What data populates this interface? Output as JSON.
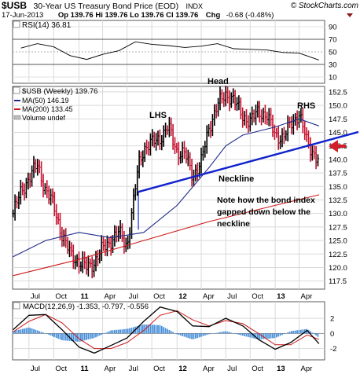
{
  "header": {
    "symbol": "$USB",
    "title": "30-Year US Treasury Bond Price (EOD)",
    "exchange": "INDX",
    "watermark": "© StockCharts.com",
    "date": "17-Jun-2013",
    "quote": "Op 139.76  Hi 139.76  Lo 139.76  Cl 139.76",
    "chg_label": "Chg",
    "chg_value": "-0.68 (-0.48%)",
    "chg_color": "#c00000"
  },
  "chart_data": [
    {
      "type": "line",
      "panel": "RSI",
      "title": "RSI(14) 36.81",
      "ylim": [
        0,
        100
      ],
      "y_ticks": [
        10,
        30,
        50,
        70,
        90
      ],
      "overbought": 70,
      "oversold": 30,
      "x_dates": [
        "2010-06-01",
        "2010-08-01",
        "2010-10-01",
        "2010-12-01",
        "2011-02-01",
        "2011-04-01",
        "2011-06-01",
        "2011-08-01",
        "2011-10-01",
        "2011-12-01",
        "2012-02-01",
        "2012-04-01",
        "2012-06-01",
        "2012-08-01",
        "2012-10-01",
        "2012-12-01",
        "2013-02-01",
        "2013-04-01",
        "2013-06-14"
      ],
      "values": [
        56,
        63,
        58,
        44,
        38,
        46,
        52,
        66,
        62,
        60,
        57,
        59,
        63,
        55,
        54,
        53,
        49,
        48,
        37
      ]
    },
    {
      "type": "bar",
      "panel": "price",
      "title": "$USB (Weekly) 139.76",
      "legend": [
        {
          "name": "MA(50) 146.19",
          "color": "#1f2a8a"
        },
        {
          "name": "MA(200) 133.45",
          "color": "#cc1a1a"
        },
        {
          "name": "Volume undef",
          "color": "#888888"
        }
      ],
      "ylim": [
        116,
        153.5
      ],
      "y_ticks": [
        117.5,
        120.0,
        122.5,
        125.0,
        127.5,
        130.0,
        132.5,
        135.0,
        137.5,
        140.0,
        142.5,
        145.0,
        147.5,
        150.0,
        152.5
      ],
      "series": [
        {
          "name": "$USB",
          "x": [
            "2010-05-03",
            "2010-06-01",
            "2010-07-01",
            "2010-08-02",
            "2010-08-30",
            "2010-10-01",
            "2010-11-01",
            "2010-12-01",
            "2011-01-03",
            "2011-02-01",
            "2011-03-01",
            "2011-04-01",
            "2011-05-02",
            "2011-06-01",
            "2011-07-01",
            "2011-07-29",
            "2011-08-12",
            "2011-09-01",
            "2011-09-30",
            "2011-11-01",
            "2011-12-01",
            "2012-01-03",
            "2012-02-01",
            "2012-03-01",
            "2012-04-02",
            "2012-05-01",
            "2012-06-01",
            "2012-07-02",
            "2012-07-25",
            "2012-09-04",
            "2012-10-01",
            "2012-11-01",
            "2012-12-03",
            "2013-01-02",
            "2013-02-01",
            "2013-03-01",
            "2013-04-01",
            "2013-05-01",
            "2013-06-14"
          ],
          "values": [
            130.0,
            134.0,
            136.5,
            139.0,
            134.5,
            131.5,
            126.0,
            122.5,
            121.0,
            120.0,
            121.0,
            123.5,
            125.0,
            126.5,
            124.0,
            133.5,
            139.0,
            142.0,
            143.0,
            144.0,
            146.0,
            141.5,
            141.0,
            137.0,
            139.5,
            146.0,
            150.0,
            152.0,
            151.5,
            148.0,
            147.0,
            149.0,
            148.0,
            144.5,
            144.0,
            146.5,
            148.5,
            143.0,
            139.76
          ]
        },
        {
          "name": "MA(50)",
          "x": [
            "2010-05-03",
            "2010-09-01",
            "2011-01-03",
            "2011-05-02",
            "2011-09-01",
            "2012-01-03",
            "2012-05-01",
            "2012-07-02",
            "2012-09-04",
            "2013-01-02",
            "2013-04-01",
            "2013-06-14"
          ],
          "values": [
            122.0,
            125.0,
            126.5,
            125.5,
            126.5,
            131.5,
            138.5,
            142.5,
            144.5,
            146.0,
            147.5,
            146.19
          ]
        },
        {
          "name": "MA(200)",
          "x": [
            "2010-05-03",
            "2011-01-03",
            "2011-09-01",
            "2012-05-01",
            "2013-01-02",
            "2013-06-14"
          ],
          "values": [
            118.5,
            121.5,
            125.0,
            128.5,
            131.5,
            133.45
          ]
        }
      ],
      "neckline": {
        "x": [
          "2011-08-12",
          "2013-06-28"
        ],
        "y": [
          134.0,
          144.5
        ]
      },
      "annotations": {
        "lhs": "LHS",
        "head": "Head",
        "rhs": "RHS",
        "neckline": "Neckline",
        "note_lines": [
          "Note how the bond index",
          "gapped down below the",
          "neckline"
        ]
      }
    },
    {
      "type": "line",
      "panel": "MACD",
      "title": "MACD(12,26,9) -1.353, -0.797, -0.556",
      "ylim": [
        -3.5,
        4.2
      ],
      "y_ticks": [
        -2,
        0,
        2
      ],
      "x_dates": [
        "2010-05-03",
        "2010-07-01",
        "2010-09-01",
        "2010-11-01",
        "2011-01-03",
        "2011-03-01",
        "2011-05-02",
        "2011-07-01",
        "2011-09-01",
        "2011-11-01",
        "2012-01-03",
        "2012-03-01",
        "2012-05-01",
        "2012-07-02",
        "2012-09-04",
        "2012-11-01",
        "2013-01-02",
        "2013-03-01",
        "2013-05-01",
        "2013-06-14"
      ],
      "series": [
        {
          "name": "MACD",
          "values": [
            0.5,
            2.4,
            2.5,
            0.5,
            -1.8,
            -2.6,
            -1.6,
            -0.6,
            1.6,
            3.5,
            2.9,
            1.0,
            0.9,
            2.0,
            1.0,
            -0.8,
            -2.1,
            -1.2,
            0.4,
            -1.353
          ]
        },
        {
          "name": "Signal",
          "values": [
            0.2,
            1.6,
            2.5,
            1.4,
            -0.7,
            -2.0,
            -2.0,
            -1.2,
            0.4,
            2.4,
            3.0,
            1.8,
            1.0,
            1.7,
            1.3,
            0.0,
            -1.5,
            -1.5,
            -0.2,
            -0.797
          ]
        },
        {
          "name": "Histogram",
          "values": [
            0.3,
            0.8,
            0.0,
            -0.9,
            -1.1,
            -0.6,
            0.4,
            0.6,
            1.2,
            1.1,
            -0.1,
            -0.8,
            -0.1,
            0.3,
            -0.3,
            -0.8,
            -0.6,
            0.3,
            0.6,
            -0.556
          ]
        }
      ]
    }
  ],
  "x_axis": {
    "ticks": [
      {
        "label": "Jul",
        "date": "2010-07-01"
      },
      {
        "label": "Oct",
        "date": "2010-10-01"
      },
      {
        "label": "11",
        "date": "2011-01-03",
        "bold": true
      },
      {
        "label": "Apr",
        "date": "2011-04-01"
      },
      {
        "label": "Jul",
        "date": "2011-07-01"
      },
      {
        "label": "Oct",
        "date": "2011-10-01"
      },
      {
        "label": "12",
        "date": "2012-01-03",
        "bold": true
      },
      {
        "label": "Apr",
        "date": "2012-04-02"
      },
      {
        "label": "Jul",
        "date": "2012-07-02"
      },
      {
        "label": "Oct",
        "date": "2012-10-01"
      },
      {
        "label": "13",
        "date": "2013-01-02",
        "bold": true
      },
      {
        "label": "Apr",
        "date": "2013-04-01"
      }
    ]
  },
  "colors": {
    "ma50": "#1f2a8a",
    "ma200": "#cc1a1a",
    "neckline": "#1122cc",
    "annotation_text": "#1d2fc4",
    "arrow": "#d41f2a",
    "up_bar": "#000000",
    "down_bar": "#c8102e",
    "histogram": "#4a90d9",
    "rsi_line": "#000000"
  }
}
